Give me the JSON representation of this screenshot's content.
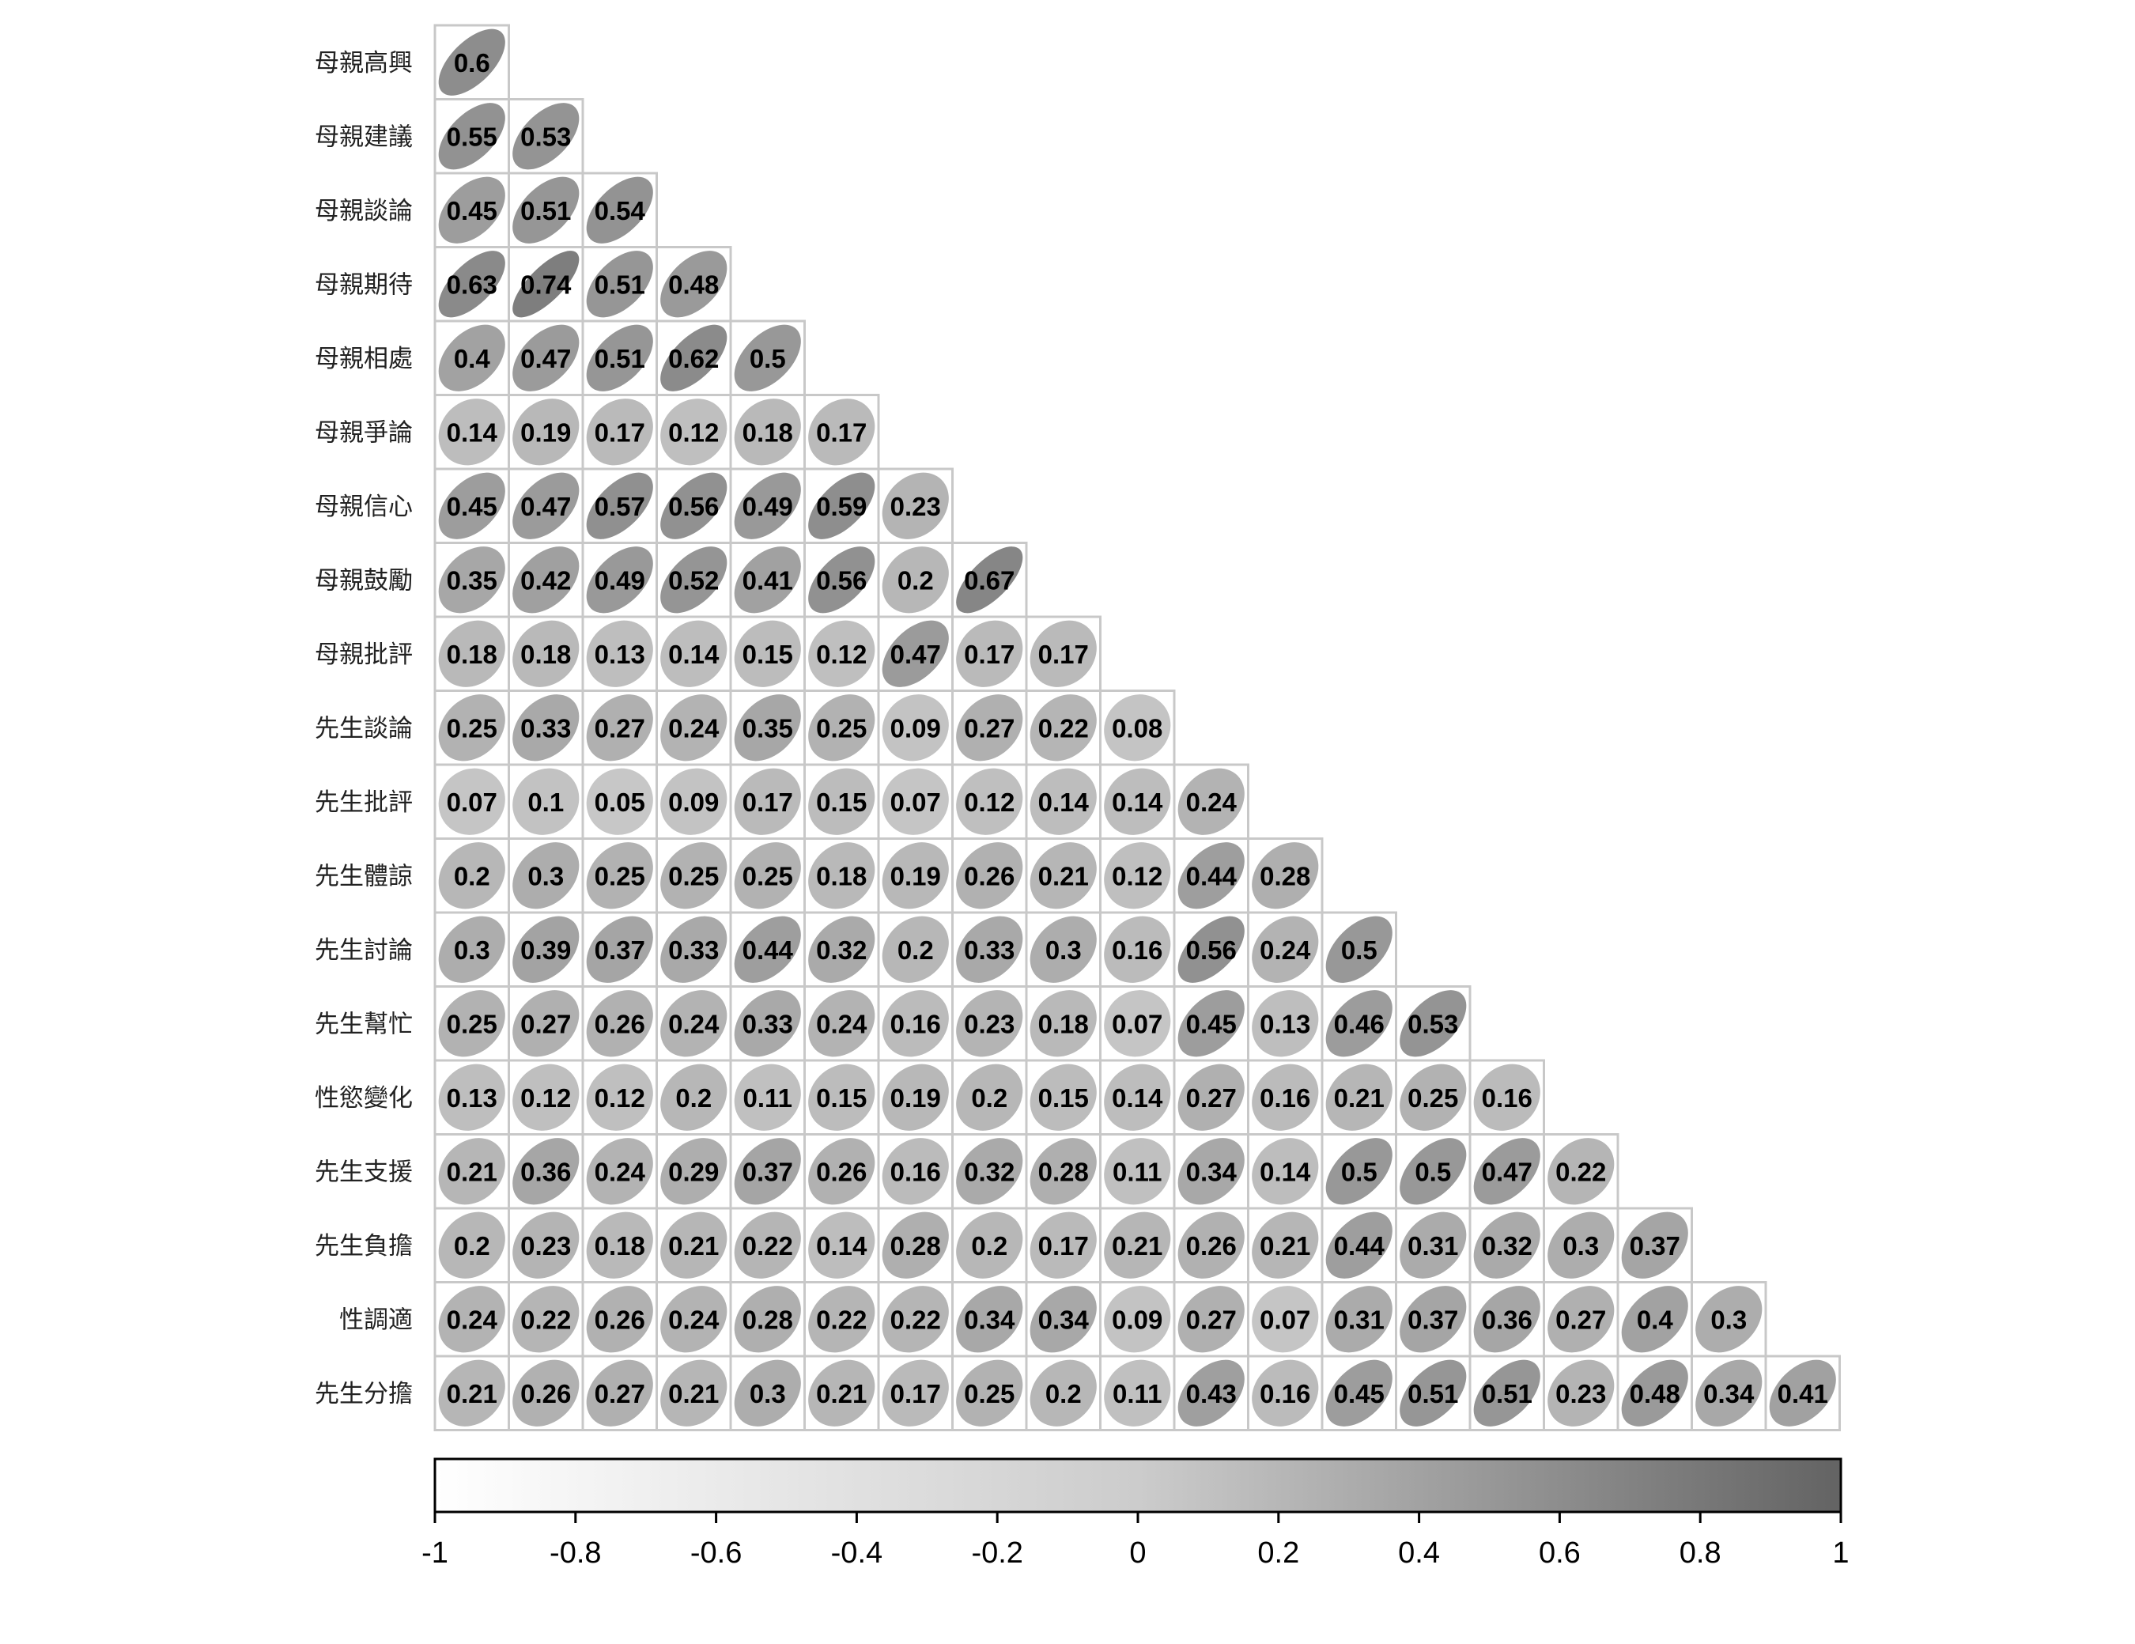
{
  "chart_data": {
    "type": "heatmap",
    "variables": [
      "母親高興",
      "母親建議",
      "母親談論",
      "母親期待",
      "母親相處",
      "母親爭論",
      "母親信心",
      "母親鼓勵",
      "母親批評",
      "先生談論",
      "先生批評",
      "先生體諒",
      "先生討論",
      "先生幫忙",
      "性慾變化",
      "先生支援",
      "先生負擔",
      "性調適",
      "先生分擔"
    ],
    "matrix": [
      [
        0.6
      ],
      [
        0.55,
        0.53
      ],
      [
        0.45,
        0.51,
        0.54
      ],
      [
        0.63,
        0.74,
        0.51,
        0.48
      ],
      [
        0.4,
        0.47,
        0.51,
        0.62,
        0.5
      ],
      [
        0.14,
        0.19,
        0.17,
        0.12,
        0.18,
        0.17
      ],
      [
        0.45,
        0.47,
        0.57,
        0.56,
        0.49,
        0.59,
        0.23
      ],
      [
        0.35,
        0.42,
        0.49,
        0.52,
        0.41,
        0.56,
        0.2,
        0.67
      ],
      [
        0.18,
        0.18,
        0.13,
        0.14,
        0.15,
        0.12,
        0.47,
        0.17,
        0.17
      ],
      [
        0.25,
        0.33,
        0.27,
        0.24,
        0.35,
        0.25,
        0.09,
        0.27,
        0.22,
        0.08
      ],
      [
        0.07,
        0.1,
        0.05,
        0.09,
        0.17,
        0.15,
        0.07,
        0.12,
        0.14,
        0.14,
        0.24
      ],
      [
        0.2,
        0.3,
        0.25,
        0.25,
        0.25,
        0.18,
        0.19,
        0.26,
        0.21,
        0.12,
        0.44,
        0.28
      ],
      [
        0.3,
        0.39,
        0.37,
        0.33,
        0.44,
        0.32,
        0.2,
        0.33,
        0.3,
        0.16,
        0.56,
        0.24,
        0.5
      ],
      [
        0.25,
        0.27,
        0.26,
        0.24,
        0.33,
        0.24,
        0.16,
        0.23,
        0.18,
        0.07,
        0.45,
        0.13,
        0.46,
        0.53
      ],
      [
        0.13,
        0.12,
        0.12,
        0.2,
        0.11,
        0.15,
        0.19,
        0.2,
        0.15,
        0.14,
        0.27,
        0.16,
        0.21,
        0.25,
        0.16
      ],
      [
        0.21,
        0.36,
        0.24,
        0.29,
        0.37,
        0.26,
        0.16,
        0.32,
        0.28,
        0.11,
        0.34,
        0.14,
        0.5,
        0.5,
        0.47,
        0.22
      ],
      [
        0.2,
        0.23,
        0.18,
        0.21,
        0.22,
        0.14,
        0.28,
        0.2,
        0.17,
        0.21,
        0.26,
        0.21,
        0.44,
        0.31,
        0.32,
        0.3,
        0.37
      ],
      [
        0.24,
        0.22,
        0.26,
        0.24,
        0.28,
        0.22,
        0.22,
        0.34,
        0.34,
        0.09,
        0.27,
        0.07,
        0.31,
        0.37,
        0.36,
        0.27,
        0.4,
        0.3
      ],
      [
        0.21,
        0.26,
        0.27,
        0.21,
        0.3,
        0.21,
        0.17,
        0.25,
        0.2,
        0.11,
        0.43,
        0.16,
        0.45,
        0.51,
        0.51,
        0.23,
        0.48,
        0.34,
        0.41
      ]
    ],
    "colorbar": {
      "range": [
        -1,
        1
      ],
      "ticks": [
        "-1",
        "-0.8",
        "-0.6",
        "-0.4",
        "-0.2",
        "0",
        "0.2",
        "0.4",
        "0.6",
        "0.8",
        "1"
      ],
      "low_color": "#ffffff",
      "high_color": "#636363"
    },
    "grid": true,
    "title": "",
    "xlabel": "",
    "ylabel": ""
  },
  "colors": {
    "cell_border": "#c8c8c8",
    "value_text": "#000000"
  }
}
